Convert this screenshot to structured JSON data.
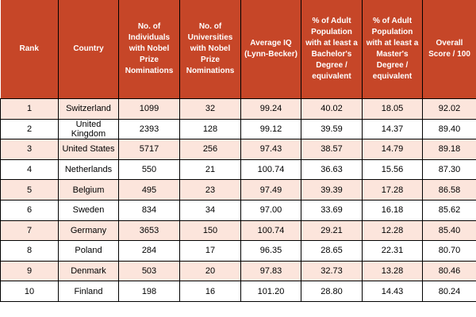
{
  "colors": {
    "header_bg": "#c64628",
    "header_text": "#ffffff",
    "row_alt_bg": "#fce5dc",
    "row_bg": "#ffffff",
    "border": "#000000",
    "body_text": "#000000"
  },
  "chart_data": {
    "type": "table",
    "columns": [
      "Rank",
      "Country",
      "No. of Individuals with Nobel Prize Nominations",
      "No. of Universities with Nobel Prize Nominations",
      "Average IQ (Lynn-Becker)",
      "% of Adult Population with at least a Bachelor's Degree / equivalent",
      "% of Adult Population with at least a Master's Degree / equivalent",
      "Overall Score / 100"
    ],
    "rows": [
      [
        "1",
        "Switzerland",
        "1099",
        "32",
        "99.24",
        "40.02",
        "18.05",
        "92.02"
      ],
      [
        "2",
        "United Kingdom",
        "2393",
        "128",
        "99.12",
        "39.59",
        "14.37",
        "89.40"
      ],
      [
        "3",
        "United States",
        "5717",
        "256",
        "97.43",
        "38.57",
        "14.79",
        "89.18"
      ],
      [
        "4",
        "Netherlands",
        "550",
        "21",
        "100.74",
        "36.63",
        "15.56",
        "87.30"
      ],
      [
        "5",
        "Belgium",
        "495",
        "23",
        "97.49",
        "39.39",
        "17.28",
        "86.58"
      ],
      [
        "6",
        "Sweden",
        "834",
        "34",
        "97.00",
        "33.69",
        "16.18",
        "85.62"
      ],
      [
        "7",
        "Germany",
        "3653",
        "150",
        "100.74",
        "29.21",
        "12.28",
        "85.40"
      ],
      [
        "8",
        "Poland",
        "284",
        "17",
        "96.35",
        "28.65",
        "22.31",
        "80.70"
      ],
      [
        "9",
        "Denmark",
        "503",
        "20",
        "97.83",
        "32.73",
        "13.28",
        "80.46"
      ],
      [
        "10",
        "Finland",
        "198",
        "16",
        "101.20",
        "28.80",
        "14.43",
        "80.24"
      ]
    ]
  }
}
